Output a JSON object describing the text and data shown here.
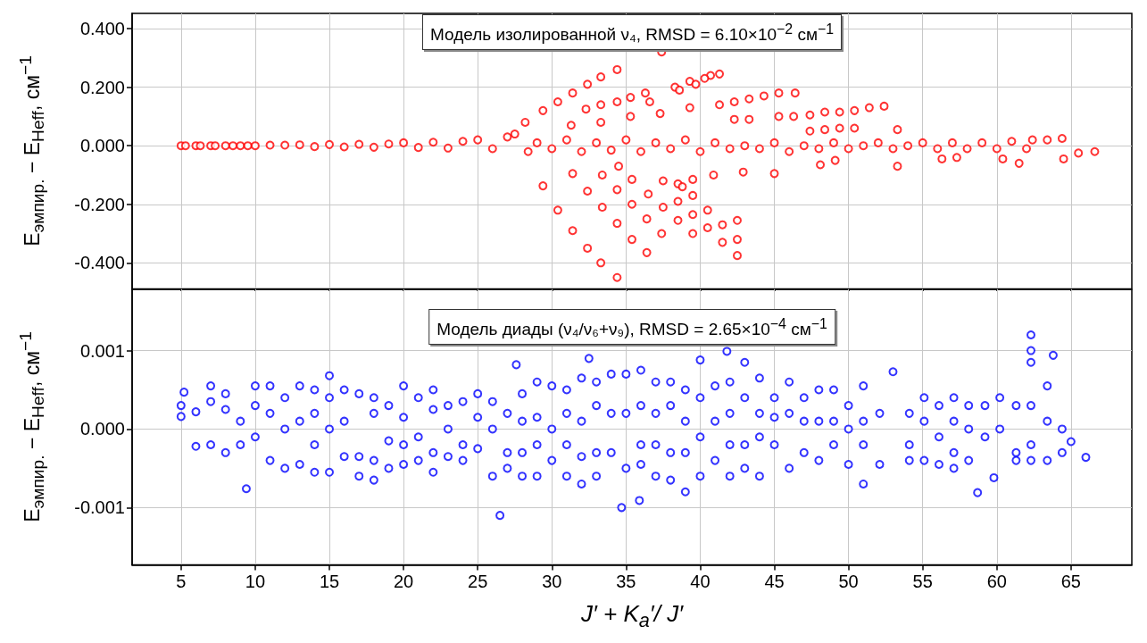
{
  "chart_data": [
    {
      "type": "scatter",
      "title": "Модель изолированной ν₄, RMSD = 6.10×10$^{−2}$ см$^{−1}$",
      "ylabel": "E$_{эмпир.}$ − E$_{Heff}$, см$^{−1}$",
      "xlim": [
        1.7,
        69.1
      ],
      "xticks": [
        5,
        10,
        15,
        20,
        25,
        30,
        35,
        40,
        45,
        50,
        55,
        60,
        65
      ],
      "ylim": [
        -0.489,
        0.452
      ],
      "yticks": [
        {
          "value": -0.4,
          "label": "-0.400"
        },
        {
          "value": -0.2,
          "label": "-0.200"
        },
        {
          "value": 0,
          "label": "0.000"
        },
        {
          "value": 0.2,
          "label": "0.200"
        },
        {
          "value": 0.4,
          "label": "0.400"
        }
      ],
      "grid": true,
      "marker": "circle",
      "tick_labels": "y",
      "series": [
        {
          "color": "#ff0000",
          "x": [
            5,
            5.3,
            6,
            6.3,
            7,
            7.3,
            8,
            8.5,
            9,
            9.5,
            10,
            11,
            12,
            13,
            14,
            15,
            16,
            17,
            18,
            19,
            20,
            21,
            22,
            23,
            24,
            25,
            26,
            27,
            27.5,
            28.2,
            28.4,
            29,
            30,
            31,
            32,
            33,
            34,
            35,
            36,
            37,
            38,
            39,
            40,
            41,
            42,
            43,
            44,
            45,
            46,
            47,
            48,
            49,
            50,
            51,
            52,
            53,
            54,
            55,
            56,
            57,
            58,
            59,
            60,
            61,
            62,
            37.4,
            34.4,
            33.3,
            32.4,
            31.4,
            30.4,
            29.4,
            41.3,
            40.7,
            40.3,
            39.3,
            39.7,
            38.3,
            38.6,
            36.3,
            35.3,
            34.4,
            33.3,
            32.3,
            36.6,
            41.3,
            42.3,
            43.3,
            44.3,
            45.3,
            46.4,
            29.4,
            30.4,
            31.4,
            32.4,
            33.3,
            34.4,
            31.4,
            32.4,
            33.4,
            34.4,
            35.4,
            36.4,
            33.4,
            34.4,
            35.4,
            36.4,
            37.4,
            36.5,
            37.5,
            38.5,
            39.5,
            40.5,
            41.5,
            42.5,
            41.5,
            42.5,
            42.5,
            39.5,
            38.5,
            38.5,
            38.8,
            39.5,
            39.5,
            40.9,
            42.9,
            45.0,
            40.5,
            35.4,
            34.5,
            37.5,
            39.3,
            37.3,
            35.3,
            33.3,
            31.3,
            42.3,
            43.3,
            45.3,
            46.3,
            47.4,
            48.4,
            49.4,
            50.4,
            51.4,
            52.4,
            47.4,
            48.4,
            49.4,
            50.4,
            53.3,
            53.3,
            48.1,
            49.1,
            61.5,
            64.5,
            65.5,
            66.6,
            64.4,
            63.4,
            62.4,
            56.3,
            57.3,
            60.4
          ],
          "values": [
            0,
            0,
            0,
            0,
            0,
            0,
            0,
            0,
            0,
            0,
            0,
            0.002,
            0.002,
            0.003,
            -0.003,
            0.004,
            -0.004,
            0.005,
            -0.005,
            0.006,
            0.01,
            -0.006,
            0.012,
            -0.008,
            0.015,
            0.02,
            -0.01,
            0.03,
            0.04,
            0.08,
            -0.02,
            0.01,
            -0.01,
            0.02,
            -0.02,
            0.01,
            -0.015,
            0.02,
            -0.02,
            0.01,
            -0.01,
            0.02,
            -0.02,
            0.01,
            -0.01,
            0,
            -0.01,
            0.01,
            -0.02,
            0,
            -0.01,
            0.01,
            -0.01,
            0,
            0.01,
            -0.01,
            0,
            0.01,
            -0.01,
            0.01,
            -0.01,
            0.01,
            -0.01,
            0.015,
            -0.01,
            0.32,
            0.26,
            0.235,
            0.21,
            0.18,
            0.15,
            0.12,
            0.245,
            0.24,
            0.23,
            0.22,
            0.21,
            0.2,
            0.19,
            0.18,
            0.165,
            0.15,
            0.14,
            0.125,
            0.15,
            0.14,
            0.15,
            0.16,
            0.17,
            0.18,
            0.18,
            -0.137,
            -0.22,
            -0.29,
            -0.35,
            -0.4,
            -0.45,
            -0.095,
            -0.155,
            -0.21,
            -0.265,
            -0.32,
            -0.365,
            -0.1,
            -0.15,
            -0.2,
            -0.25,
            -0.3,
            -0.165,
            -0.21,
            -0.19,
            -0.235,
            -0.28,
            -0.33,
            -0.375,
            -0.27,
            -0.255,
            -0.32,
            -0.3,
            -0.255,
            -0.13,
            -0.14,
            -0.17,
            -0.115,
            -0.1,
            -0.09,
            -0.095,
            -0.22,
            -0.115,
            -0.07,
            -0.12,
            0.13,
            0.11,
            0.1,
            0.08,
            0.07,
            0.09,
            0.09,
            0.1,
            0.1,
            0.105,
            0.115,
            0.115,
            0.12,
            0.13,
            0.135,
            0.05,
            0.055,
            0.06,
            0.06,
            0.055,
            -0.07,
            -0.065,
            -0.05,
            -0.06,
            -0.045,
            -0.025,
            -0.02,
            0.025,
            0.02,
            0.02,
            -0.045,
            -0.04,
            -0.045
          ]
        }
      ]
    },
    {
      "type": "scatter",
      "title": "Модель диады (ν₄/ν₆+ν₉), RMSD = 2.65×10$^{−4}$ см$^{−1}$",
      "ylabel": "E$_{эмпир.}$ − E$_{Heff}$, см$^{−1}$",
      "xlabel": "J′ + K$_{a}$′/ J′",
      "xlim": [
        1.7,
        69.1
      ],
      "xticks": [
        5,
        10,
        15,
        20,
        25,
        30,
        35,
        40,
        45,
        50,
        55,
        60,
        65
      ],
      "ylim": [
        -0.00173,
        0.00178
      ],
      "yticks": [
        {
          "value": -0.001,
          "label": "-0.001"
        },
        {
          "value": 0,
          "label": "0.000"
        },
        {
          "value": 0.001,
          "label": "0.001"
        }
      ],
      "grid": true,
      "marker": "circle",
      "series": [
        {
          "color": "#0000ff",
          "x": [
            5,
            5,
            5.2,
            6,
            6,
            7,
            7,
            7,
            8,
            8,
            8,
            9,
            9,
            9.4,
            10,
            10,
            10,
            11,
            11,
            11,
            12,
            12,
            12,
            13,
            13,
            13,
            14,
            14,
            14,
            14,
            15,
            15,
            15,
            15,
            16,
            16,
            16,
            17,
            17,
            17,
            18,
            18,
            18,
            18,
            19,
            19,
            19,
            20,
            20,
            20,
            20,
            21,
            21,
            21,
            22,
            22,
            22,
            22,
            23,
            23,
            23,
            24,
            24,
            24,
            25,
            25,
            25,
            26,
            26,
            26,
            26.5,
            27.6,
            27,
            27,
            27,
            28,
            28,
            28,
            28,
            29,
            29,
            29,
            29,
            30,
            30,
            30,
            31,
            31,
            31,
            31,
            32.5,
            32,
            32,
            32,
            32,
            33,
            33,
            33,
            33,
            34,
            34,
            34,
            34.7,
            35,
            35,
            35,
            35.9,
            36,
            36,
            36,
            36,
            37,
            37,
            37,
            37,
            38,
            38,
            38,
            38,
            39,
            39,
            39,
            39,
            40,
            40,
            40,
            40,
            41.8,
            41,
            41,
            41,
            42,
            42,
            42,
            42,
            43,
            43,
            43,
            43,
            44,
            44,
            44,
            44,
            45,
            45,
            45,
            46,
            46,
            46,
            47,
            47,
            47,
            48,
            48,
            48,
            49,
            49,
            49,
            50,
            50,
            50,
            51,
            51,
            51,
            51,
            52.1,
            53.0,
            52.1,
            54.1,
            54.1,
            54.1,
            55.1,
            55.1,
            55.1,
            56.1,
            56.1,
            56.1,
            57.1,
            57.1,
            57.1,
            57.1,
            58.1,
            58.1,
            58.1,
            59.2,
            59.2,
            58.7,
            60.2,
            60.2,
            59.8,
            61.3,
            61.3,
            61.3,
            62.3,
            62.3,
            62.3,
            62.3,
            62.3,
            62.3,
            63.4,
            63.4,
            63.4,
            63.8,
            64.4,
            64.4,
            65.0,
            66.0
          ],
          "values": [
            0.0003,
            0.00016,
            0.00047,
            -0.00022,
            0.00022,
            0.00035,
            0.00055,
            -0.0002,
            0.00045,
            0.00025,
            -0.0003,
            0.0001,
            -0.0002,
            -0.00076,
            0.00055,
            0.0003,
            -0.0001,
            0.00055,
            0.0002,
            -0.0004,
            0.0004,
            -0.0005,
            0,
            0.00055,
            0.0001,
            -0.00045,
            0.0005,
            0.0002,
            -0.0002,
            -0.00055,
            0.00068,
            0.0004,
            -0.00055,
            0,
            0.0005,
            0.0001,
            -0.00035,
            0.00045,
            -0.00035,
            -0.0006,
            0.0004,
            0.0002,
            -0.0004,
            -0.00065,
            0.0003,
            -0.00015,
            -0.0005,
            0.00055,
            0.00015,
            -0.0002,
            -0.00045,
            0.0004,
            -0.0001,
            -0.0004,
            0.0005,
            0.00025,
            -0.0003,
            -0.00055,
            0.0003,
            0,
            -0.00035,
            0.00035,
            -0.0002,
            -0.0004,
            0.00045,
            0.00015,
            -0.00025,
            0.00035,
            0,
            -0.0006,
            -0.0011,
            0.00082,
            0.0002,
            -0.0003,
            -0.0005,
            0.00045,
            0.0001,
            -0.0003,
            -0.0006,
            0.0006,
            0.00015,
            -0.0002,
            -0.0006,
            0.00055,
            0,
            -0.0004,
            0.0005,
            0.0002,
            -0.0006,
            -0.0002,
            0.0009,
            0.00065,
            0.0001,
            -0.00035,
            -0.0007,
            0.0006,
            0.0003,
            -0.0003,
            -0.0006,
            0.0007,
            0.0002,
            -0.0003,
            -0.001,
            0.0007,
            0.0002,
            -0.0005,
            -0.00091,
            0.00075,
            0.0003,
            -0.0002,
            -0.00045,
            0.0006,
            0.0002,
            -0.0002,
            -0.0006,
            0.0006,
            0.0003,
            -0.0003,
            -0.00065,
            0.0005,
            0.0001,
            -0.0003,
            -0.0008,
            0.00088,
            0.0004,
            -0.0001,
            -0.0006,
            0.00099,
            0.00055,
            0.0001,
            -0.0004,
            0.0006,
            0.0002,
            -0.0002,
            -0.0006,
            0.00085,
            0.0004,
            -0.0002,
            -0.0005,
            0.00065,
            0.0002,
            -0.0001,
            -0.0006,
            0.0004,
            0.00015,
            -0.0002,
            0.0006,
            0.0002,
            -0.0005,
            0.0004,
            0.0001,
            -0.0003,
            0.0005,
            0.0001,
            -0.0004,
            0.0005,
            0.0001,
            -0.0002,
            0.0003,
            0,
            -0.00045,
            0.00055,
            0.0001,
            -0.0002,
            -0.0007,
            0.0002,
            0.00073,
            -0.00045,
            0.0002,
            -0.0002,
            -0.0004,
            0.0004,
            0.0001,
            -0.0004,
            0.0003,
            -0.0001,
            -0.00045,
            0.0004,
            0.0001,
            -0.0003,
            -0.0005,
            0.0003,
            0,
            -0.0004,
            0.0003,
            -0.0001,
            -0.00081,
            0.0004,
            0,
            -0.00062,
            0.0003,
            -0.0003,
            -0.0004,
            0.0012,
            0.001,
            0.00085,
            0.0003,
            -0.0002,
            -0.0004,
            0.00055,
            0.0001,
            -0.0004,
            0.00094,
            0,
            -0.0003,
            -0.00016,
            -0.00036
          ]
        }
      ]
    }
  ]
}
